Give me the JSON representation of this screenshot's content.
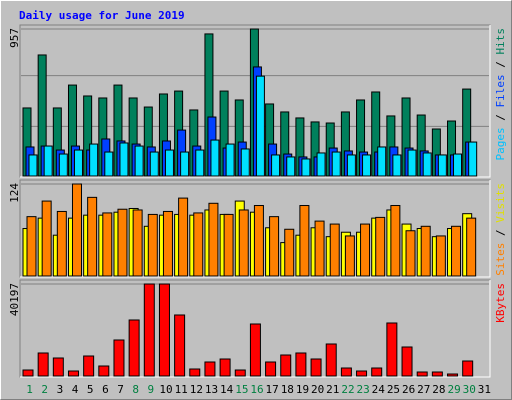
{
  "title": "Daily usage for June 2019",
  "legend_separator": " / ",
  "chart_data": [
    {
      "type": "bar",
      "ylim": [
        0,
        957
      ],
      "yticks": [
        957
      ],
      "series": [
        {
          "name": "Hits",
          "color": "#00805c",
          "text_color": "#00805c",
          "values": [
            443,
            788,
            443,
            592,
            521,
            508,
            592,
            508,
            449,
            534,
            553,
            430,
            925,
            553,
            495,
            957,
            469,
            417,
            378,
            352,
            345,
            417,
            495,
            547,
            391,
            508,
            397,
            306,
            358,
            566,
            null
          ]
        },
        {
          "name": "Files",
          "color": "#0040ff",
          "text_color": "#0040ff",
          "values": [
            189,
            195,
            169,
            195,
            169,
            241,
            228,
            208,
            189,
            228,
            299,
            195,
            384,
            182,
            221,
            710,
            208,
            143,
            124,
            124,
            182,
            163,
            156,
            156,
            189,
            182,
            163,
            137,
            137,
            221,
            null
          ]
        },
        {
          "name": "Pages",
          "color": "#00e0ff",
          "text_color": "#00c0ff",
          "values": [
            137,
            195,
            143,
            169,
            208,
            156,
            215,
            195,
            156,
            169,
            156,
            169,
            234,
            208,
            176,
            650,
            137,
            124,
            111,
            150,
            156,
            137,
            137,
            189,
            137,
            169,
            150,
            137,
            143,
            221,
            null
          ]
        }
      ]
    },
    {
      "type": "bar",
      "ylim": [
        0,
        124
      ],
      "yticks": [
        124
      ],
      "series": [
        {
          "name": "Visits",
          "color": "#ffff00",
          "text_color": "#e0e000",
          "values": [
            64,
            78,
            55,
            78,
            82,
            82,
            86,
            91,
            67,
            82,
            83,
            82,
            89,
            83,
            101,
            86,
            65,
            45,
            55,
            65,
            53,
            59,
            59,
            78,
            89,
            70,
            64,
            53,
            64,
            84,
            null
          ]
        },
        {
          "name": "Sites",
          "color": "#ff8000",
          "text_color": "#ff8000",
          "values": [
            80,
            101,
            87,
            124,
            106,
            85,
            90,
            89,
            83,
            87,
            105,
            85,
            98,
            83,
            89,
            95,
            80,
            63,
            95,
            74,
            70,
            54,
            70,
            79,
            95,
            61,
            67,
            54,
            67,
            78,
            null
          ]
        }
      ]
    },
    {
      "type": "bar",
      "ylim": [
        0,
        40197
      ],
      "yticks": [
        40197
      ],
      "categories": [
        "1",
        "2",
        "3",
        "4",
        "5",
        "6",
        "7",
        "8",
        "9",
        "10",
        "11",
        "12",
        "13",
        "14",
        "15",
        "16",
        "17",
        "18",
        "19",
        "20",
        "21",
        "22",
        "23",
        "24",
        "25",
        "26",
        "27",
        "28",
        "29",
        "30",
        "31"
      ],
      "category_colors": [
        "#008040",
        "#008040",
        "#000000",
        "#000000",
        "#000000",
        "#000000",
        "#000000",
        "#008040",
        "#008040",
        "#000000",
        "#000000",
        "#000000",
        "#000000",
        "#000000",
        "#008040",
        "#008040",
        "#000000",
        "#000000",
        "#000000",
        "#000000",
        "#000000",
        "#008040",
        "#008040",
        "#000000",
        "#000000",
        "#000000",
        "#000000",
        "#000000",
        "#008040",
        "#008040",
        "#000000"
      ],
      "series": [
        {
          "name": "KBytes",
          "color": "#ff0000",
          "text_color": "#ff0000",
          "values": [
            2622,
            10052,
            7866,
            2185,
            8740,
            4370,
            15733,
            24473,
            40197,
            40197,
            26658,
            3059,
            6118,
            7429,
            2622,
            22725,
            6118,
            9177,
            10052,
            7429,
            13985,
            3496,
            2185,
            3496,
            23162,
            12674,
            1748,
            1748,
            874,
            6555,
            null
          ]
        }
      ]
    }
  ]
}
